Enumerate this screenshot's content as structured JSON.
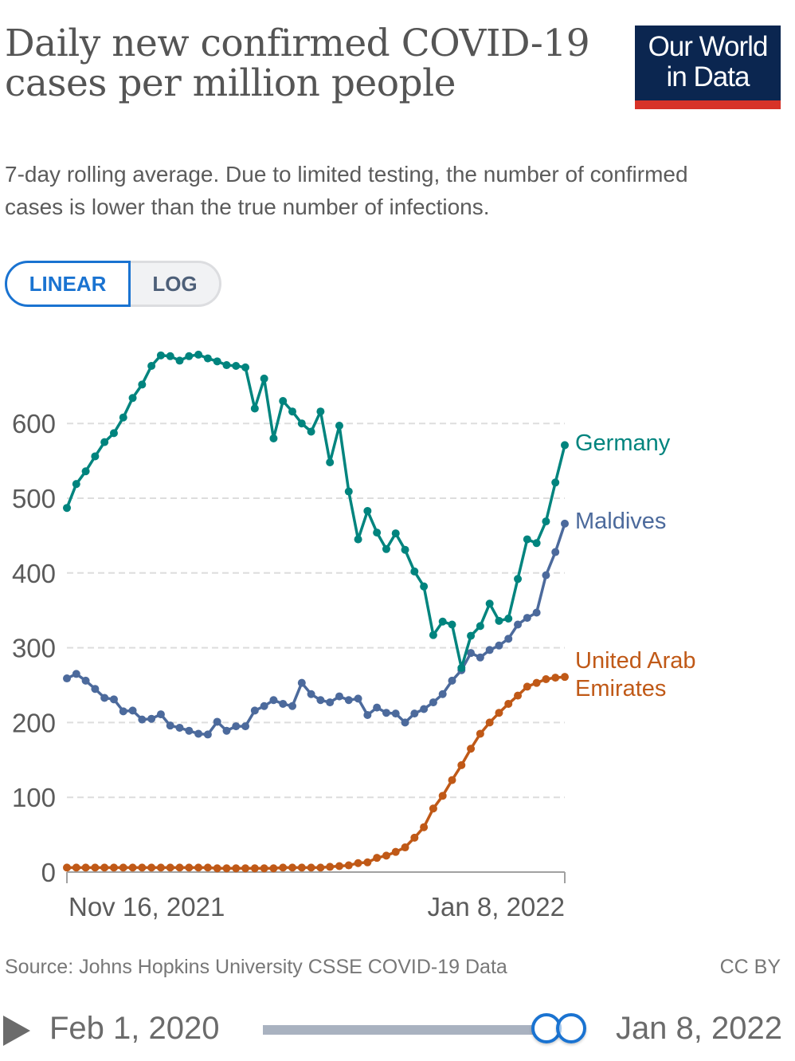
{
  "header": {
    "title": "Daily new confirmed COVID-19 cases per million people",
    "subtitle": "7-day rolling average. Due to limited testing, the number of confirmed cases is lower than the true number of infections.",
    "logo_text": "Our World in Data"
  },
  "scale_toggle": {
    "linear_label": "LINEAR",
    "log_label": "LOG",
    "selected": "LINEAR"
  },
  "footer": {
    "source": "Source: Johns Hopkins University CSSE COVID-19 Data",
    "license": "CC BY"
  },
  "timeline": {
    "start_label": "Feb 1, 2020",
    "end_label": "Jan 8, 2022",
    "play_icon": "play-icon"
  },
  "colors": {
    "germany": "#00847e",
    "maldives": "#4c6a9c",
    "uae": "#c05917",
    "grid": "#dddddd",
    "axis": "#a1a1a1",
    "tick_text": "#5b5b5b"
  },
  "chart_data": {
    "type": "line",
    "title": "Daily new confirmed COVID-19 cases per million people",
    "xlabel": "",
    "ylabel": "",
    "x_start": "Nov 16, 2021",
    "x_end": "Jan 8, 2022",
    "x_tick_labels": [
      "Nov 16, 2021",
      "Jan 8, 2022"
    ],
    "ylim": [
      0,
      700
    ],
    "y_ticks": [
      0,
      100,
      200,
      300,
      400,
      500,
      600
    ],
    "grid": true,
    "legend": "right-end labels",
    "series": [
      {
        "name": "Germany",
        "color": "#00847e",
        "values": [
          487,
          519,
          536,
          556,
          575,
          587,
          608,
          634,
          652,
          677,
          691,
          690,
          684,
          690,
          692,
          687,
          683,
          678,
          677,
          675,
          620,
          660,
          580,
          630,
          616,
          600,
          589,
          616,
          548,
          597,
          509,
          445,
          483,
          454,
          432,
          453,
          431,
          402,
          382,
          317,
          335,
          331,
          273,
          316,
          329,
          359,
          336,
          339,
          392,
          445,
          440,
          469,
          521,
          571
        ]
      },
      {
        "name": "Maldives",
        "color": "#4c6a9c",
        "values": [
          259,
          265,
          256,
          245,
          233,
          231,
          215,
          216,
          204,
          205,
          211,
          196,
          193,
          189,
          185,
          184,
          201,
          189,
          195,
          195,
          216,
          222,
          230,
          225,
          222,
          253,
          238,
          230,
          227,
          235,
          230,
          232,
          210,
          220,
          213,
          212,
          200,
          212,
          218,
          227,
          238,
          256,
          270,
          293,
          287,
          297,
          303,
          312,
          331,
          340,
          347,
          397,
          428,
          466
        ]
      },
      {
        "name": "United Arab Emirates",
        "color": "#c05917",
        "values": [
          6,
          6,
          6,
          6,
          6,
          6,
          6,
          6,
          6,
          6,
          6,
          6,
          6,
          6,
          6,
          6,
          5,
          5,
          5,
          5,
          5,
          5,
          5,
          6,
          6,
          6,
          6,
          6,
          7,
          8,
          9,
          12,
          13,
          19,
          22,
          27,
          33,
          46,
          60,
          85,
          102,
          123,
          143,
          165,
          185,
          200,
          213,
          225,
          236,
          248,
          253,
          258,
          260,
          261
        ]
      }
    ]
  }
}
